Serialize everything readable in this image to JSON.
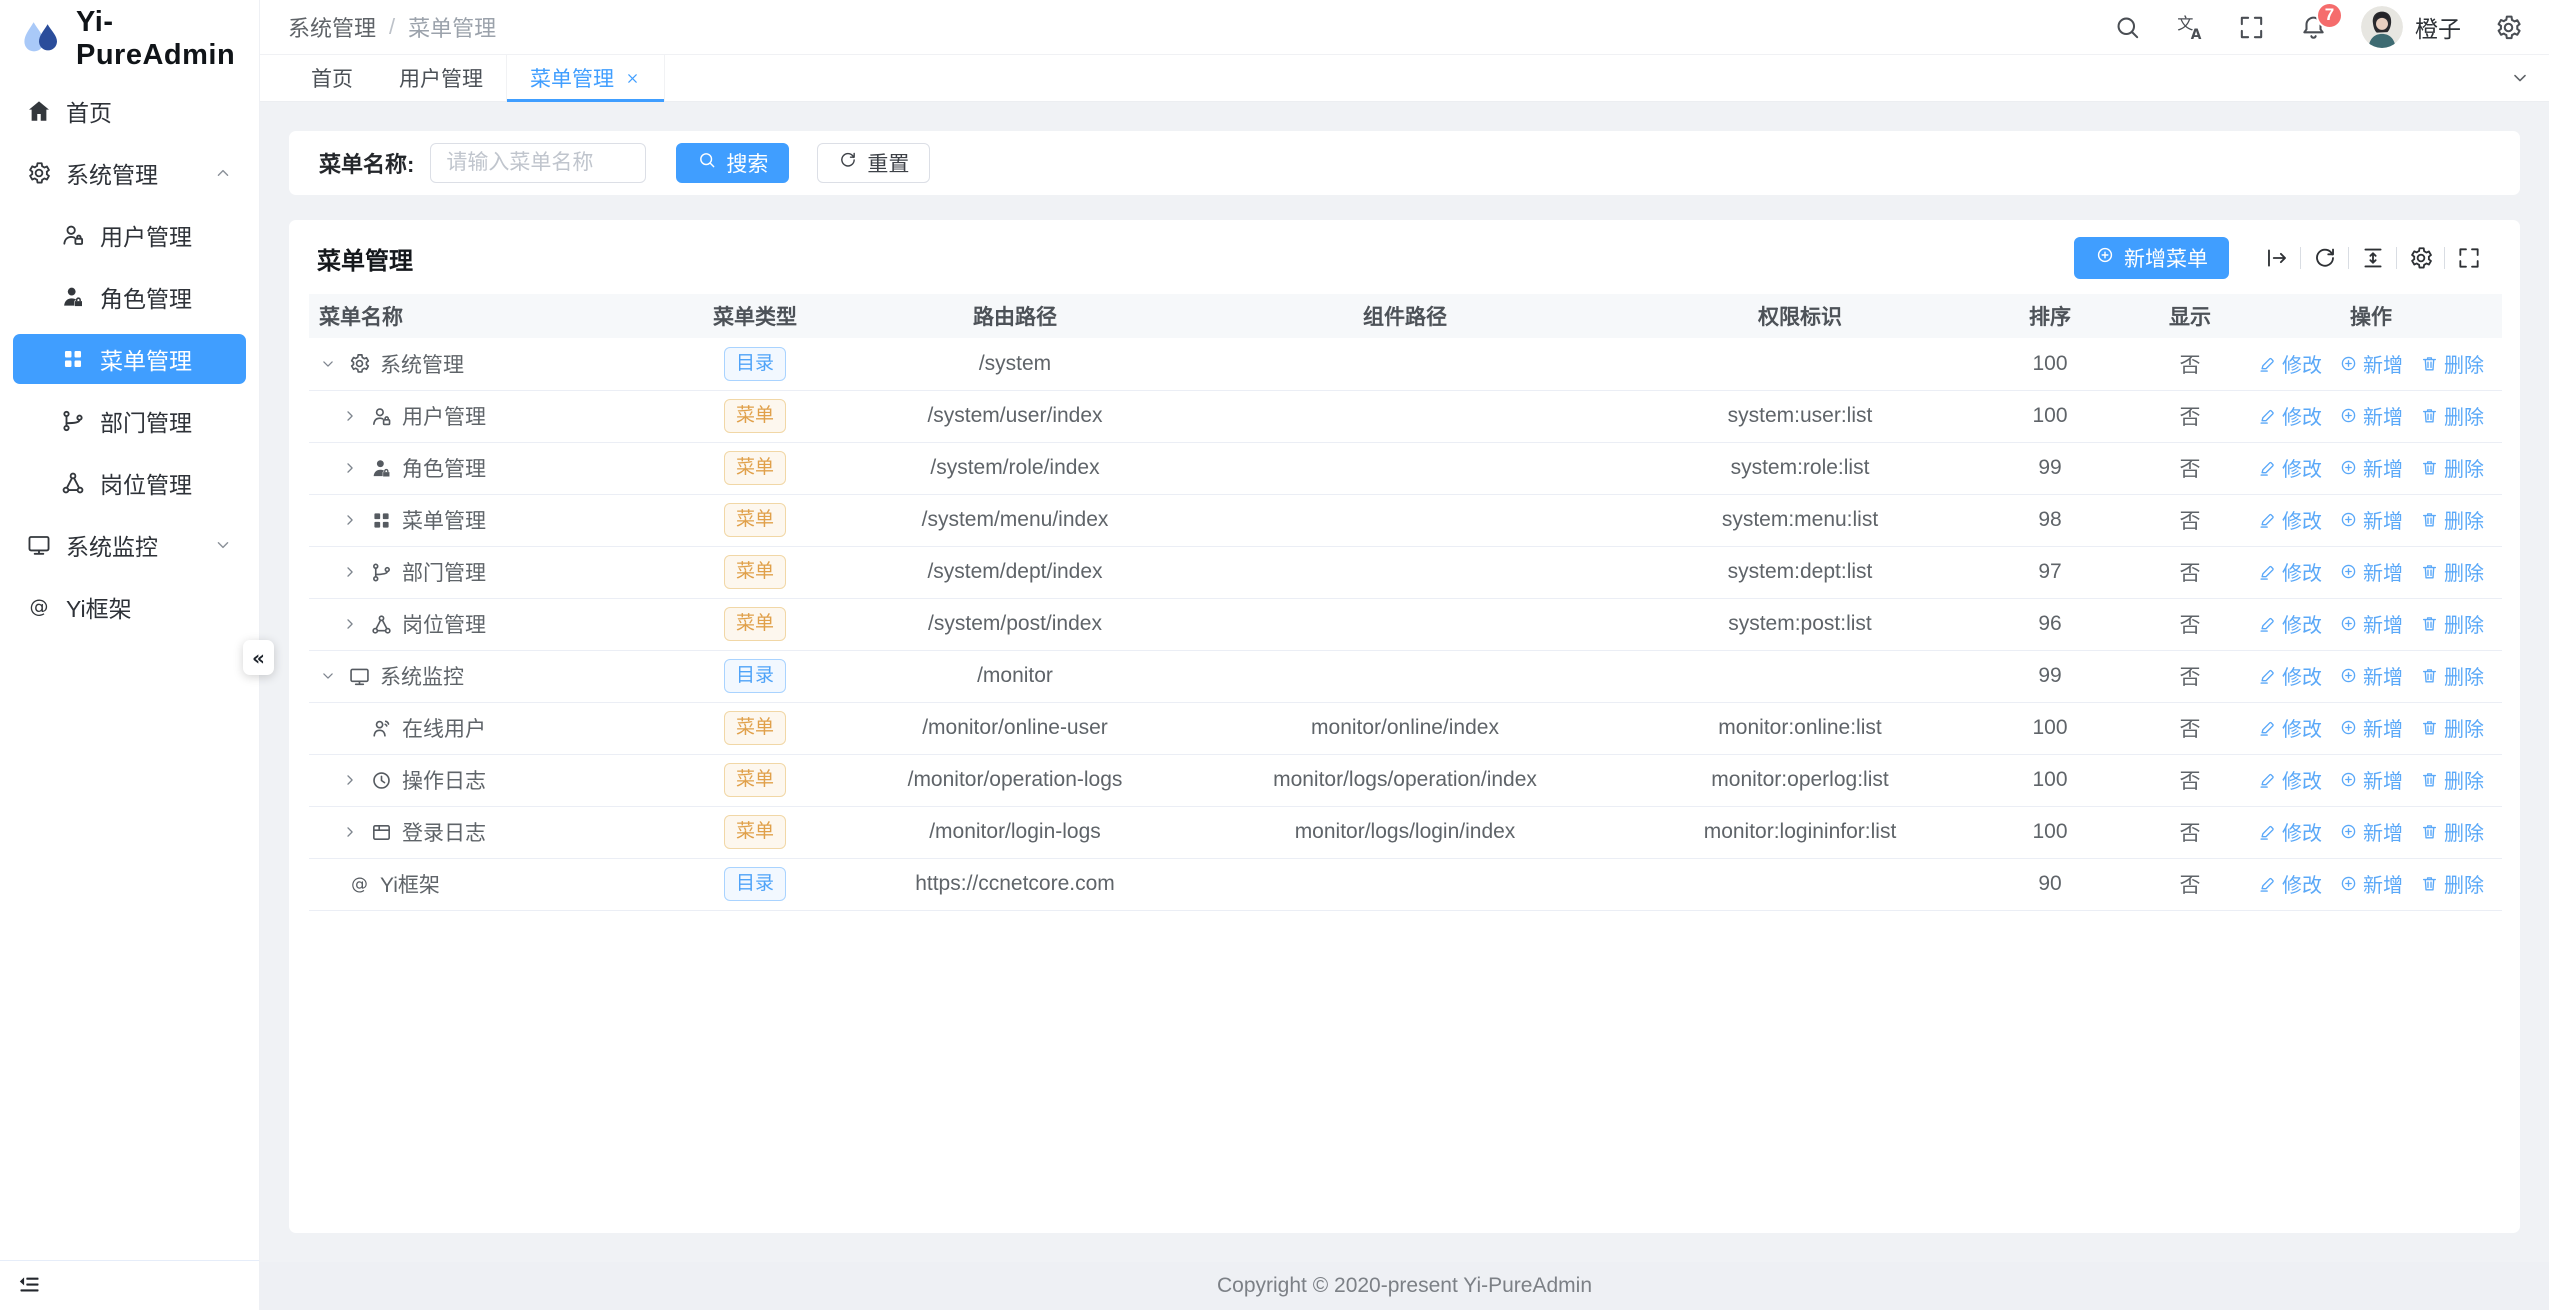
{
  "app": {
    "copyright": "Copyright © 2020-present Yi-PureAdmin"
  },
  "colors": {
    "primary": "#409eff",
    "link_blue": "#5aa8f8",
    "warning": "#e6a23c",
    "badge_red": "#f56c6c"
  },
  "sidebar": {
    "logo_title": "Yi-PureAdmin",
    "items": [
      {
        "id": "home",
        "label": "首页",
        "icon": "home-icon",
        "level": 0
      },
      {
        "id": "system",
        "label": "系统管理",
        "icon": "gear-icon",
        "level": 0,
        "expand": "up"
      },
      {
        "id": "users",
        "label": "用户管理",
        "icon": "user-lock-icon",
        "level": 1
      },
      {
        "id": "roles",
        "label": "角色管理",
        "icon": "role-icon",
        "level": 1
      },
      {
        "id": "menus",
        "label": "菜单管理",
        "icon": "grid-icon",
        "level": 1,
        "active": true
      },
      {
        "id": "depts",
        "label": "部门管理",
        "icon": "branch-icon",
        "level": 1
      },
      {
        "id": "posts",
        "label": "岗位管理",
        "icon": "share-nodes-icon",
        "level": 1
      },
      {
        "id": "monitor",
        "label": "系统监控",
        "icon": "monitor-icon",
        "level": 0,
        "expand": "down"
      },
      {
        "id": "framework",
        "label": "Yi框架",
        "icon": "at-icon",
        "level": 0
      }
    ]
  },
  "navbar": {
    "breadcrumb": [
      "系统管理",
      "菜单管理"
    ],
    "separator": "/",
    "badge_count": "7",
    "username": "橙子"
  },
  "tabs": [
    {
      "id": "home",
      "label": "首页"
    },
    {
      "id": "users",
      "label": "用户管理"
    },
    {
      "id": "menus",
      "label": "菜单管理",
      "active": true,
      "closable": true
    }
  ],
  "search": {
    "label": "菜单名称:",
    "placeholder": "请输入菜单名称",
    "search_label": "搜索",
    "reset_label": "重置"
  },
  "card": {
    "title": "菜单管理",
    "add_label": "新增菜单"
  },
  "table": {
    "headers": [
      "菜单名称",
      "菜单类型",
      "路由路径",
      "组件路径",
      "权限标识",
      "排序",
      "显示",
      "操作"
    ],
    "badge_labels": {
      "dir": "目录",
      "menu": "菜单"
    },
    "actions": [
      "修改",
      "新增",
      "删除"
    ],
    "rows": [
      {
        "name": "系统管理",
        "icon": "gear-icon",
        "type": "dir",
        "route": "/system",
        "component": "",
        "perm": "",
        "order": "100",
        "show": "否",
        "level": 0,
        "expand": "open"
      },
      {
        "name": "用户管理",
        "icon": "user-lock-icon",
        "type": "menu",
        "route": "/system/user/index",
        "component": "",
        "perm": "system:user:list",
        "order": "100",
        "show": "否",
        "level": 1,
        "expand": "closed"
      },
      {
        "name": "角色管理",
        "icon": "role-icon",
        "type": "menu",
        "route": "/system/role/index",
        "component": "",
        "perm": "system:role:list",
        "order": "99",
        "show": "否",
        "level": 1,
        "expand": "closed"
      },
      {
        "name": "菜单管理",
        "icon": "grid-icon",
        "type": "menu",
        "route": "/system/menu/index",
        "component": "",
        "perm": "system:menu:list",
        "order": "98",
        "show": "否",
        "level": 1,
        "expand": "closed"
      },
      {
        "name": "部门管理",
        "icon": "branch-icon",
        "type": "menu",
        "route": "/system/dept/index",
        "component": "",
        "perm": "system:dept:list",
        "order": "97",
        "show": "否",
        "level": 1,
        "expand": "closed"
      },
      {
        "name": "岗位管理",
        "icon": "share-nodes-icon",
        "type": "menu",
        "route": "/system/post/index",
        "component": "",
        "perm": "system:post:list",
        "order": "96",
        "show": "否",
        "level": 1,
        "expand": "closed"
      },
      {
        "name": "系统监控",
        "icon": "monitor-icon",
        "type": "dir",
        "route": "/monitor",
        "component": "",
        "perm": "",
        "order": "99",
        "show": "否",
        "level": 0,
        "expand": "open"
      },
      {
        "name": "在线用户",
        "icon": "online-user-icon",
        "type": "menu",
        "route": "/monitor/online-user",
        "component": "monitor/online/index",
        "perm": "monitor:online:list",
        "order": "100",
        "show": "否",
        "level": 1,
        "expand": "none"
      },
      {
        "name": "操作日志",
        "icon": "clock-icon",
        "type": "menu",
        "route": "/monitor/operation-logs",
        "component": "monitor/logs/operation/index",
        "perm": "monitor:operlog:list",
        "order": "100",
        "show": "否",
        "level": 1,
        "expand": "closed"
      },
      {
        "name": "登录日志",
        "icon": "log-icon",
        "type": "menu",
        "route": "/monitor/login-logs",
        "component": "monitor/logs/login/index",
        "perm": "monitor:logininfor:list",
        "order": "100",
        "show": "否",
        "level": 1,
        "expand": "closed"
      },
      {
        "name": "Yi框架",
        "icon": "at-icon",
        "type": "dir",
        "route": "https://ccnetcore.com",
        "component": "",
        "perm": "",
        "order": "90",
        "show": "否",
        "level": 0,
        "expand": "none"
      }
    ]
  }
}
